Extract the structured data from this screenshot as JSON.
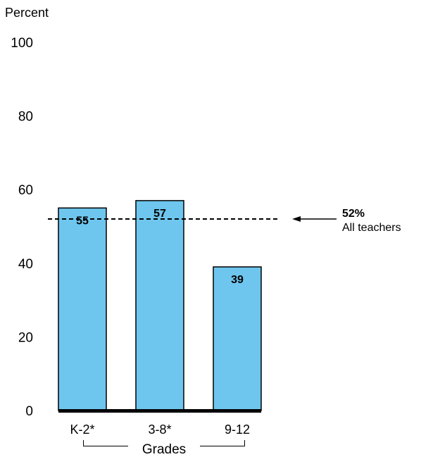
{
  "chart_data": {
    "type": "bar",
    "ylabel": "Percent",
    "ylim": [
      0,
      100
    ],
    "yticks": [
      "0",
      "20",
      "40",
      "60",
      "80",
      "100"
    ],
    "categories": [
      "K-2*",
      "3-8*",
      "9-12"
    ],
    "values": [
      55,
      57,
      39
    ],
    "data_labels": [
      "55",
      "57",
      "39"
    ],
    "xlabel": "Grades",
    "reference_line": {
      "value": 52,
      "value_label": "52%",
      "label": "All teachers"
    },
    "colors": {
      "bar": "#6ec6ee",
      "bar_outline": "#000000",
      "reference": "#000000"
    },
    "grid": false
  }
}
